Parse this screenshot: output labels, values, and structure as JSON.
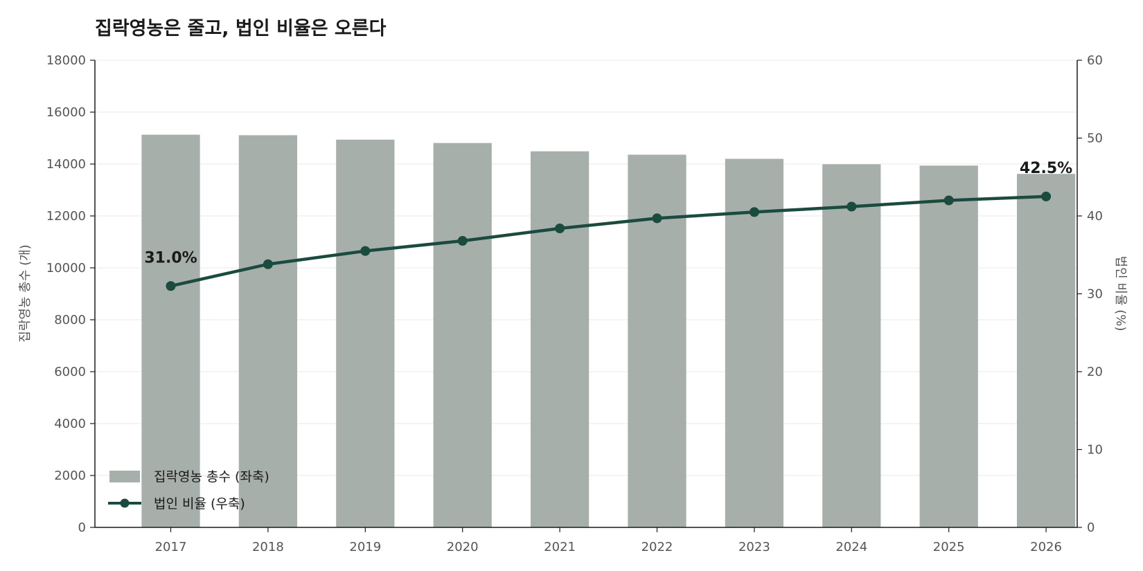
{
  "chart_data": {
    "type": "bar+line",
    "title": "집락영농은 줄고, 법인 비율은 오른다",
    "categories": [
      "2017",
      "2018",
      "2019",
      "2020",
      "2021",
      "2022",
      "2023",
      "2024",
      "2025",
      "2026"
    ],
    "series": [
      {
        "name": "집락영농 총수 (좌축)",
        "type": "bar",
        "axis": "left",
        "values": [
          15130,
          15110,
          14940,
          14810,
          14490,
          14360,
          14200,
          13990,
          13940,
          13620
        ]
      },
      {
        "name": "법인 비율 (우축)",
        "type": "line",
        "axis": "right",
        "values": [
          31.0,
          33.8,
          35.5,
          36.8,
          38.4,
          39.7,
          40.5,
          41.2,
          42.0,
          42.5
        ]
      }
    ],
    "ylabel_left": "집락영농 총수 (개)",
    "ylabel_right": "법인 비율 (%)",
    "ylim_left": [
      0,
      18000
    ],
    "ylim_right": [
      0,
      60
    ],
    "yticks_left": [
      "0",
      "2000",
      "4000",
      "6000",
      "8000",
      "10000",
      "12000",
      "14000",
      "16000",
      "18000"
    ],
    "yticks_right": [
      "0",
      "10",
      "20",
      "30",
      "40",
      "50",
      "60"
    ],
    "annotations": [
      {
        "category": "2017",
        "text": "31.0%"
      },
      {
        "category": "2026",
        "text": "42.5%"
      }
    ],
    "grid": true,
    "legend_position": "bottom-left",
    "colors": {
      "bar": "#a6afaa",
      "line": "#1b4a3f",
      "axis": "#1a1a1a",
      "grid": "#e8e8e8"
    }
  }
}
